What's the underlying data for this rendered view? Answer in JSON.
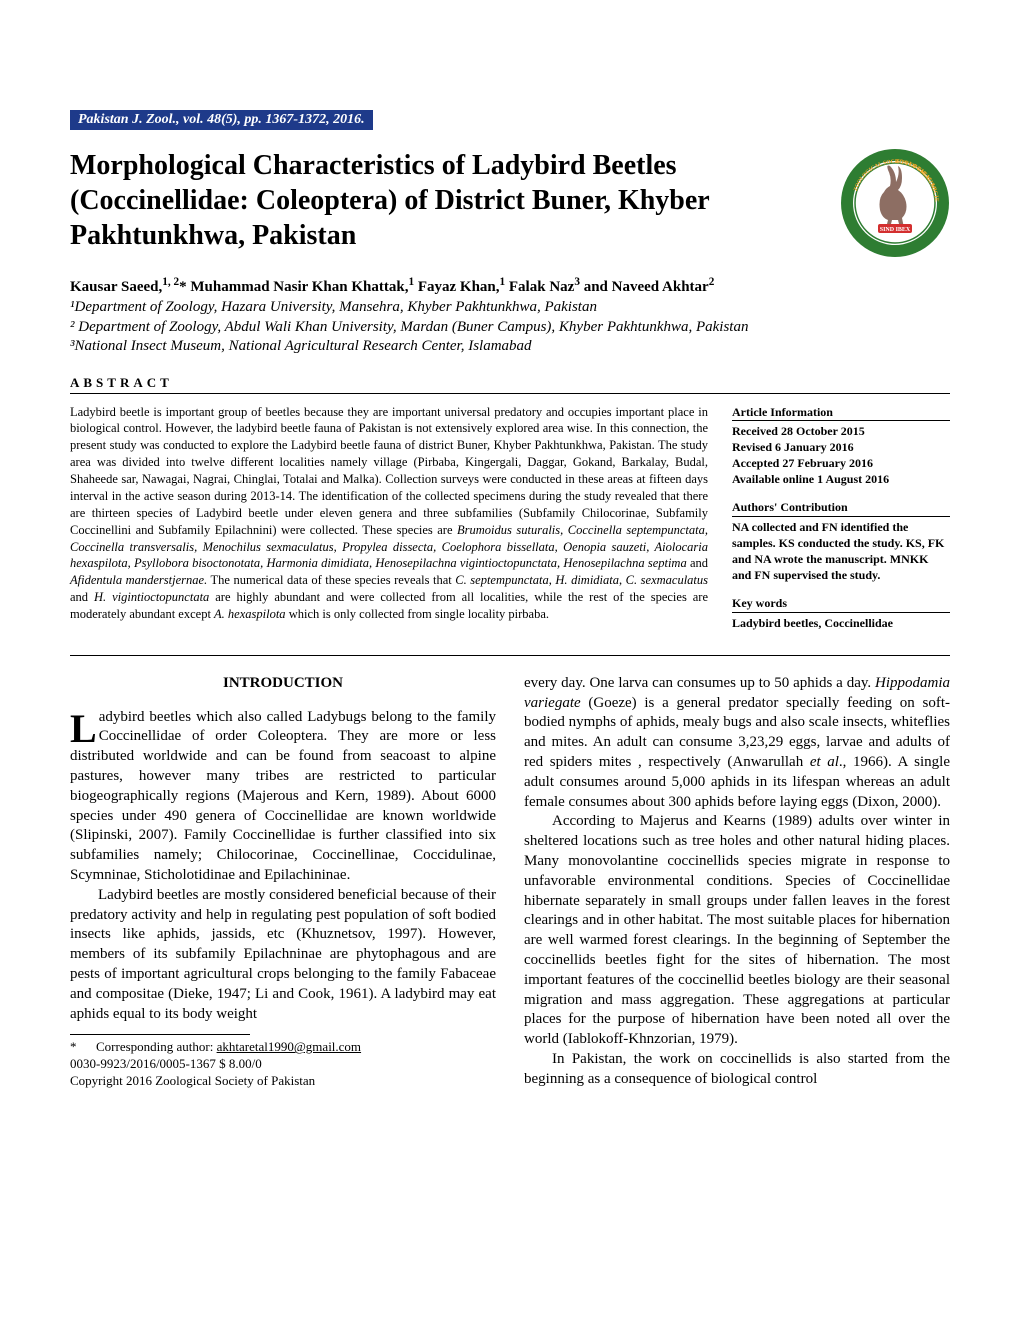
{
  "journal_header": "Pakistan J. Zool., vol. 48(5), pp. 1367-1372, 2016.",
  "title": "Morphological Characteristics of Ladybird Beetles (Coccinellidae: Coleoptera) of District Buner, Khyber Pakhtunkhwa, Pakistan",
  "authors_html": "Kausar Saeed,<sup>1, 2</sup>* Muhammad Nasir Khan Khattak,<sup>1</sup> Fayaz Khan,<sup>1</sup> Falak Naz<sup>3</sup> and Naveed Akhtar<sup>2</sup>",
  "affiliations": [
    "¹Department of Zoology, Hazara University, Mansehra, Khyber Pakhtunkhwa, Pakistan",
    "² Department of Zoology, Abdul Wali Khan University, Mardan (Buner Campus), Khyber Pakhtunkhwa, Pakistan",
    "³National Insect Museum, National Agricultural Research Center, Islamabad"
  ],
  "abstract_label": "ABSTRACT",
  "abstract_html": "Ladybird beetle is important group of beetles because they are important universal predatory and occupies important place in biological control. However, the ladybird beetle fauna of Pakistan is not extensively explored area wise. In this connection, the present study was conducted to explore the Ladybird beetle fauna of district Buner, Khyber Pakhtunkhwa, Pakistan. The study area was divided into twelve different localities namely village (Pirbaba, Kingergali, Daggar, Gokand, Barkalay, Budal, Shaheede sar, Nawagai, Nagrai, Chinglai, Totalai and Malka). Collection surveys were conducted in these areas at fifteen days interval in the active season during 2013-14. The identification of the collected specimens during the study revealed that there are thirteen species of Ladybird beetle under eleven genera and three subfamilies (Subfamily Chilocorinae, Subfamily Coccinellini and Subfamily Epilachnini) were collected. These species are <span class=\"ital\">Brumoidus suturalis, Coccinella septempunctata, Coccinella transversalis, Menochilus sexmaculatus, Propylea dissecta, Coelophora bissellata, Oenopia sauzeti, Aiolocaria hexaspilota, Psyllobora bisoctonotata, Harmonia dimidiata, Henosepilachna vigintioctopunctata, Henosepilachna septima</span> and <span class=\"ital\">Afidentula manderstjernae.</span> The numerical data of these species reveals that <span class=\"ital\">C. septempunctata</span>, <span class=\"ital\">H. dimidiata</span>, <span class=\"ital\">C. sexmaculatus</span> and <span class=\"ital\">H. vigintioctopunctata</span> are highly abundant and were collected from all localities, while the rest of the species are moderately abundant except <span class=\"ital\">A. hexaspilota</span> which is only collected from single locality pirbaba.",
  "sidebar": {
    "article_info_heading": "Article Information",
    "article_info_lines": [
      "Received 28 October 2015",
      "Revised 6 January 2016",
      "Accepted 27 February 2016",
      "Available online 1 August 2016"
    ],
    "contribution_heading": "Authors' Contribution",
    "contribution_body": "NA collected and FN identified the samples. KS conducted the study. KS, FK and NA wrote the manuscript. MNKK and FN supervised the study.",
    "keywords_heading": "Key words",
    "keywords_body": "Ladybird beetles, Coccinellidae"
  },
  "intro_heading": "INTRODUCTION",
  "col1": {
    "p1_html": "<span class=\"dropcap\">L</span>adybird beetles which also called Ladybugs belong to the family Coccinellidae of order Coleoptera. They are more or less distributed worldwide and can be found from seacoast to alpine pastures, however many tribes are restricted to particular biogeographically regions (Majerous and Kern, 1989). About 6000 species under 490 genera of Coccinellidae are known worldwide (Slipinski, 2007). Family Coccinellidae is further classified into six subfamilies namely; Chilocorinae, Coccinellinae, Coccidulinae, Scymninae, Sticholotidinae and Epilachininae.",
    "p2_html": "Ladybird beetles are mostly considered beneficial because of their predatory activity and help in regulating pest population of soft bodied insects like aphids, jassids, etc (Khuznetsov, 1997). However, members of its subfamily Epilachninae are phytophagous and are pests of important agricultural crops belonging to the family Fabaceae and compositae (Dieke, 1947; Li and Cook, 1961). A ladybird may eat aphids equal to its body weight",
    "footnote_star": "*",
    "footnote_corr": "Corresponding author: ",
    "footnote_email": "akhtaretal1990@gmail.com",
    "footnote_code": "0030-9923/2016/0005-1367 $ 8.00/0",
    "footnote_copyright": "Copyright 2016 Zoological Society of Pakistan"
  },
  "col2": {
    "p1_html": "every day. One larva can consumes up to 50 aphids a day. <span class=\"ital\">Hippodamia variegate</span> (Goeze) is a general predator specially feeding on soft- bodied nymphs of aphids, mealy bugs and also scale insects, whiteflies and mites. An adult can consume 3,23,29 eggs, larvae and adults of red spiders mites , respectively (Anwarullah <span class=\"ital\">et al</span>., 1966). A single adult consumes around 5,000 aphids in its lifespan whereas an adult female consumes about 300 aphids before laying eggs (Dixon, 2000).",
    "p2_html": "According to Majerus and Kearns (1989) adults over winter in sheltered locations such as tree holes and other natural hiding places. Many monovolantine coccinellids species migrate in response to unfavorable environmental conditions. Species of Coccinellidae hibernate separately in small groups under fallen leaves in the forest clearings and in other habitat. The most suitable places for hibernation are well warmed forest clearings. In the beginning of September the coccinellids beetles fight for the sites of hibernation. The most important features of the coccinellid beetles biology are their seasonal migration and mass aggregation. These aggregations at particular places for the purpose of hibernation have been noted all over the world (Iablokoff-Khnzorian, 1979).",
    "p3_html": "In Pakistan, the work on coccinellids is also started from the beginning as a consequence of biological control"
  },
  "logo": {
    "outer_color": "#2e7d32",
    "text_color": "#f9a825",
    "inner_bg": "#ffffff",
    "ibex_color": "#8d6e63",
    "top_text": "ZOOLOGICAL SOCIETY OF PAKISTAN",
    "banner_text": "SIND IBEX"
  }
}
